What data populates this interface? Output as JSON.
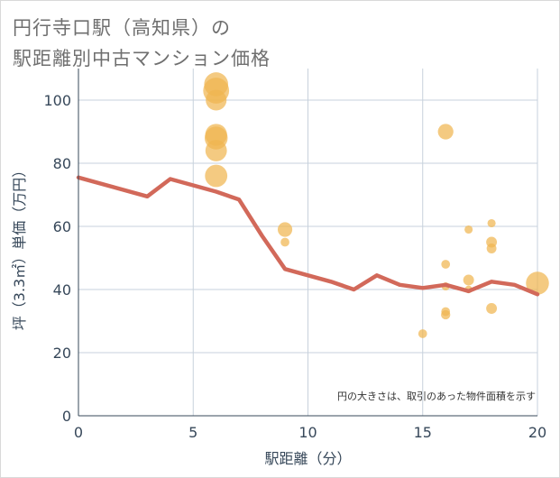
{
  "title_line1": "円行寺口駅（高知県）の",
  "title_line2": "駅距離別中古マンション価格",
  "chart_data": {
    "type": "scatter",
    "xlabel": "駅距離（分）",
    "ylabel": "坪（3.3㎡）単価（万円）",
    "xlim": [
      0,
      20
    ],
    "ylim": [
      0,
      110
    ],
    "xticks": [
      0,
      5,
      10,
      15,
      20
    ],
    "yticks": [
      0,
      20,
      40,
      60,
      80,
      100
    ],
    "grid": true,
    "note": "円の大きさは、取引のあった物件面積を示す",
    "trend_line": {
      "x": [
        0,
        3,
        4,
        6,
        7,
        8,
        9,
        10,
        11,
        12,
        13,
        14,
        15,
        16,
        17,
        18,
        19,
        20
      ],
      "y": [
        75.5,
        69.5,
        75,
        71,
        68.5,
        57,
        46.5,
        44.5,
        42.5,
        40,
        44.5,
        41.5,
        40.5,
        41.5,
        39.5,
        42.5,
        41.5,
        38.5
      ]
    },
    "points": [
      {
        "x": 6,
        "y": 105,
        "size": 60
      },
      {
        "x": 6,
        "y": 103,
        "size": 70
      },
      {
        "x": 6,
        "y": 100,
        "size": 45
      },
      {
        "x": 6,
        "y": 89,
        "size": 50
      },
      {
        "x": 6,
        "y": 88,
        "size": 55
      },
      {
        "x": 6,
        "y": 84,
        "size": 48
      },
      {
        "x": 6,
        "y": 76,
        "size": 52
      },
      {
        "x": 9,
        "y": 59,
        "size": 22
      },
      {
        "x": 9,
        "y": 55,
        "size": 8
      },
      {
        "x": 15,
        "y": 26,
        "size": 8
      },
      {
        "x": 16,
        "y": 90,
        "size": 25
      },
      {
        "x": 16,
        "y": 48,
        "size": 8
      },
      {
        "x": 16,
        "y": 41,
        "size": 7
      },
      {
        "x": 16,
        "y": 33,
        "size": 8
      },
      {
        "x": 16,
        "y": 32,
        "size": 9
      },
      {
        "x": 17,
        "y": 59,
        "size": 7
      },
      {
        "x": 17,
        "y": 43,
        "size": 12
      },
      {
        "x": 17,
        "y": 40,
        "size": 6
      },
      {
        "x": 18,
        "y": 61,
        "size": 7
      },
      {
        "x": 18,
        "y": 55,
        "size": 12
      },
      {
        "x": 18,
        "y": 53,
        "size": 10
      },
      {
        "x": 18,
        "y": 34,
        "size": 12
      },
      {
        "x": 20,
        "y": 42,
        "size": 55
      }
    ],
    "colors": {
      "bubble": "#f0b550",
      "line": "#d2695a",
      "grid": "#c7d1dc",
      "axis": "#37485a"
    }
  }
}
